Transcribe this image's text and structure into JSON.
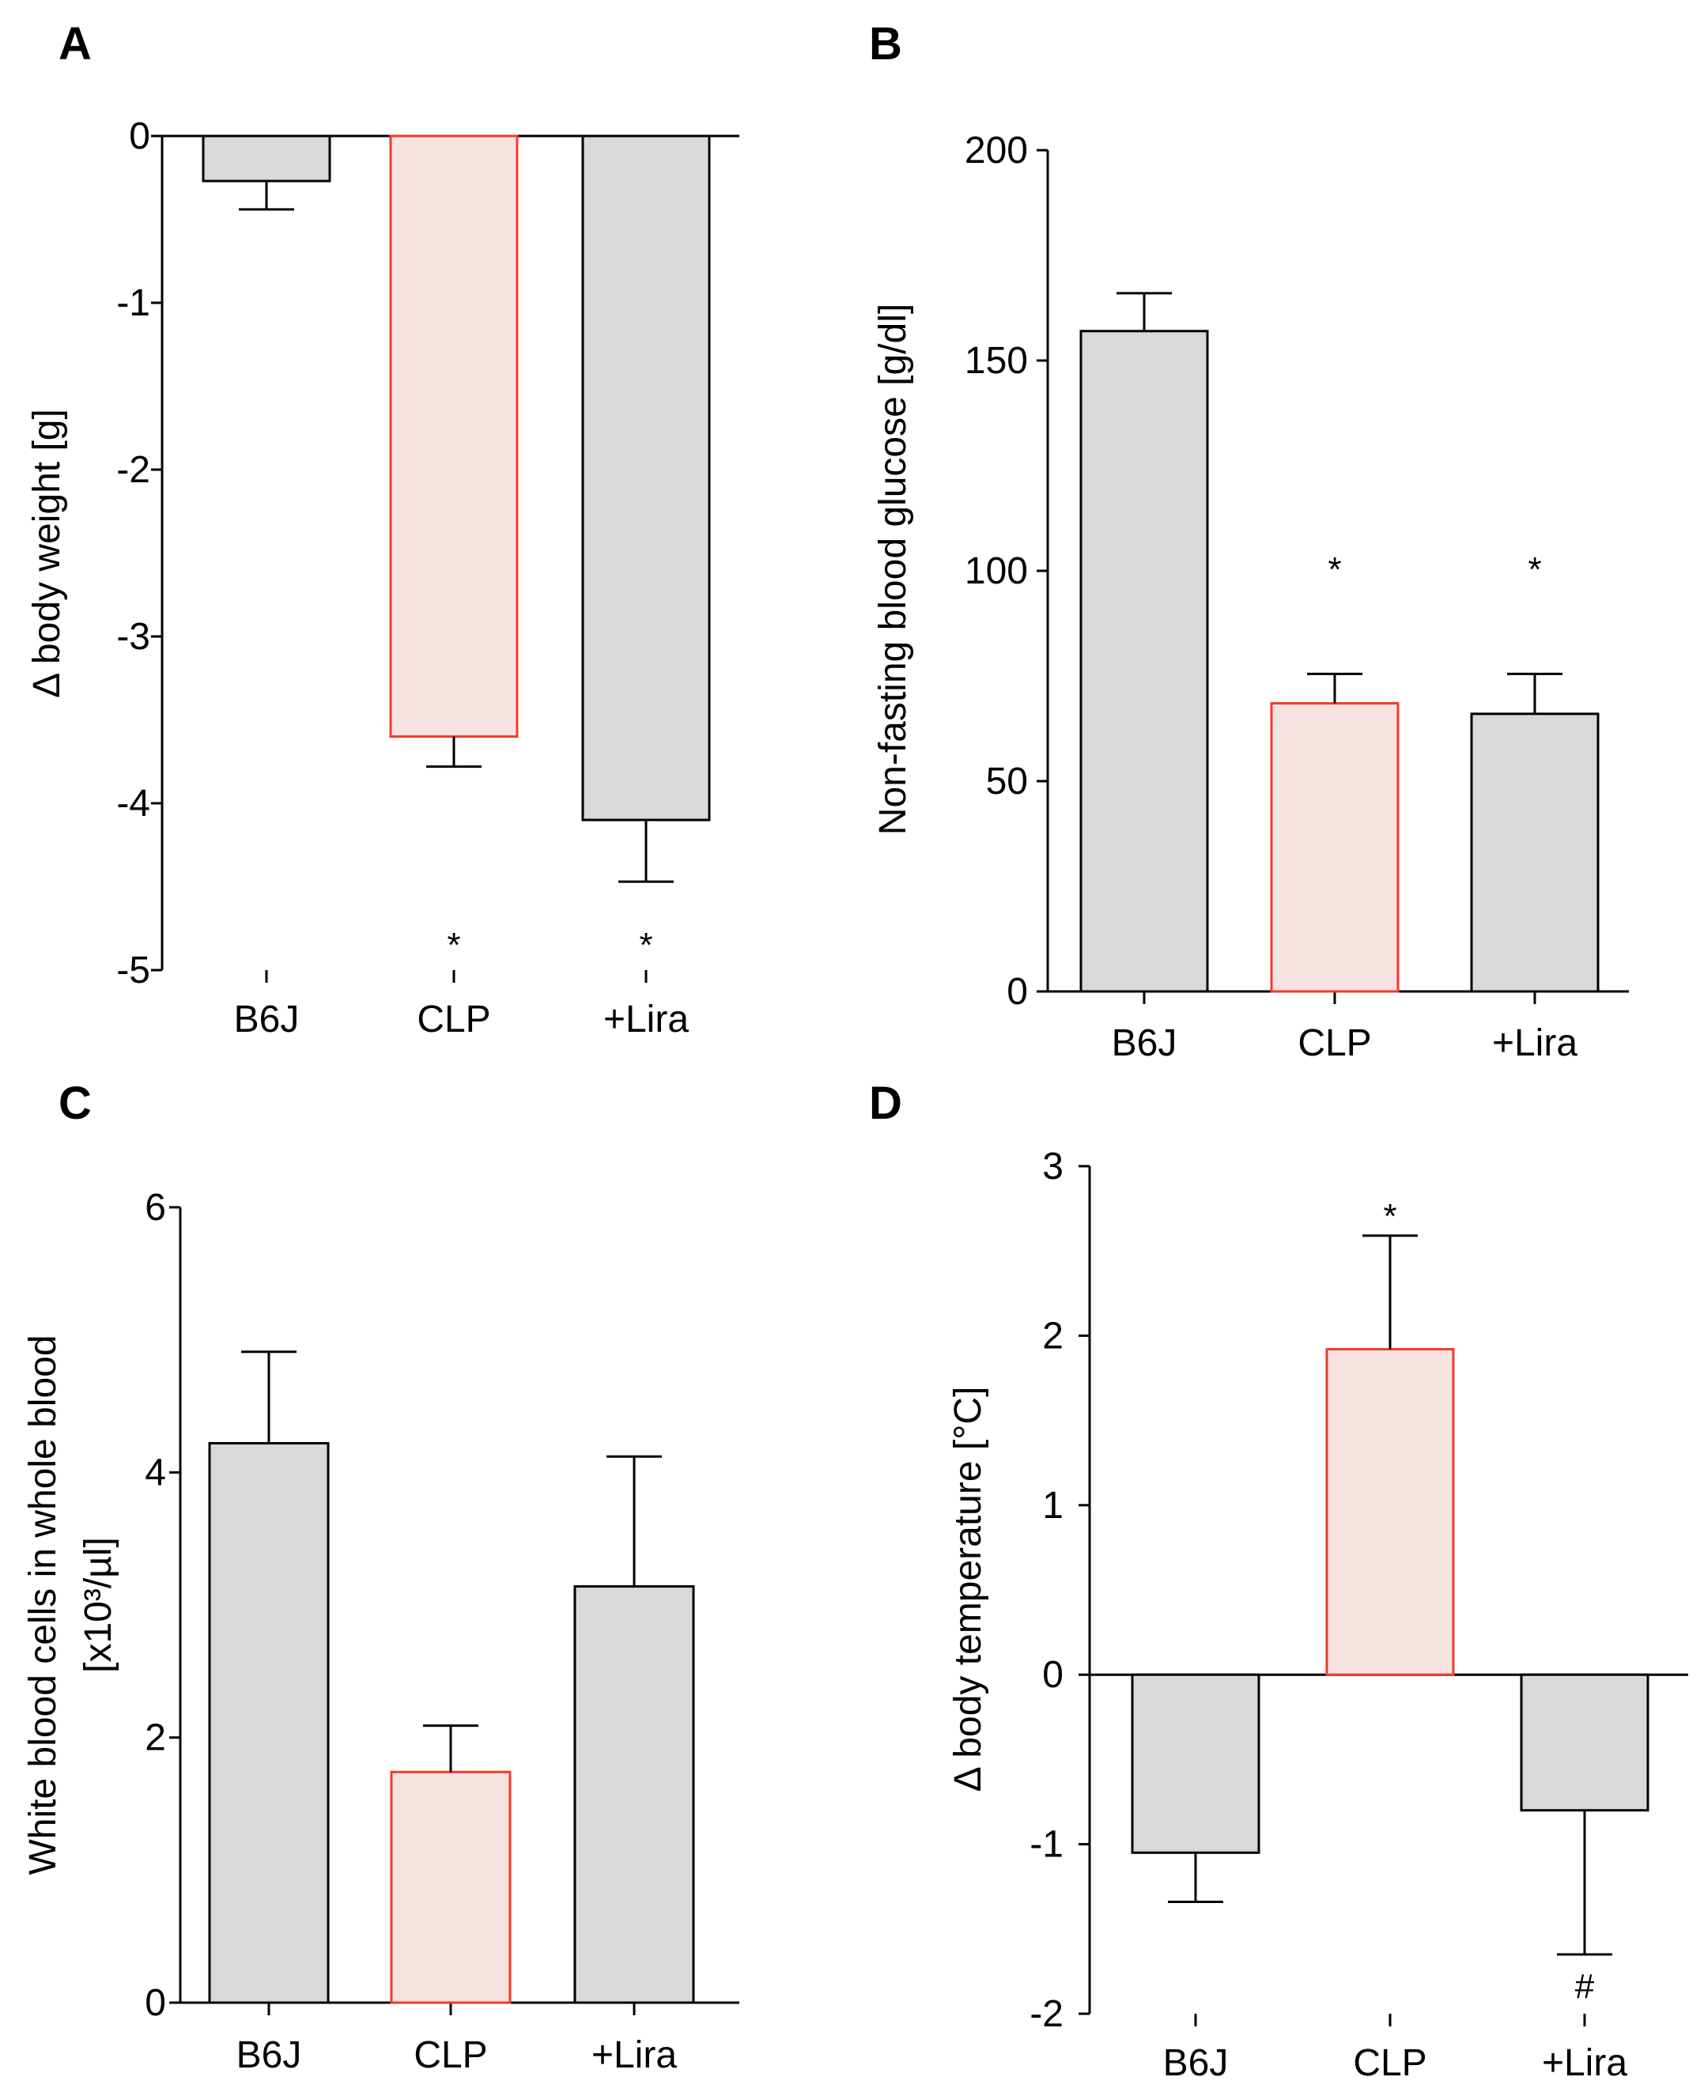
{
  "chart_data": [
    {
      "panel": "A",
      "type": "bar",
      "categories": [
        "B6J",
        "CLP",
        "+Lira"
      ],
      "values": [
        -0.27,
        -3.6,
        -4.1
      ],
      "errors": [
        0.17,
        0.18,
        0.37
      ],
      "error_direction": "down",
      "annotations": [
        "",
        "*",
        "*"
      ],
      "ylabel": "Δ body weight [g]",
      "ylim": [
        -5,
        0
      ],
      "yticks": [
        0,
        -1,
        -2,
        -3,
        -4,
        -5
      ],
      "ytick_labels": [
        "0",
        "-1",
        "-2",
        "-3",
        "-4",
        "-5"
      ],
      "colors": {
        "fill": [
          "#d9d9d9",
          "#f5e2e1",
          "#d9d9d9"
        ],
        "stroke": [
          "#000000",
          "#f03c28",
          "#000000"
        ]
      }
    },
    {
      "panel": "B",
      "type": "bar",
      "categories": [
        "B6J",
        "CLP",
        "+Lira"
      ],
      "values": [
        157,
        68.5,
        66
      ],
      "errors": [
        9,
        7,
        9.5
      ],
      "error_direction": "up",
      "annotations": [
        "",
        "*",
        "*"
      ],
      "ylabel": "Non-fasting blood glucose [g/dl]",
      "ylim": [
        0,
        200
      ],
      "yticks": [
        0,
        50,
        100,
        150,
        200
      ],
      "ytick_labels": [
        "0",
        "50",
        "100",
        "150",
        "200"
      ],
      "colors": {
        "fill": [
          "#d9d9d9",
          "#f5e2e1",
          "#d9d9d9"
        ],
        "stroke": [
          "#000000",
          "#f03c28",
          "#000000"
        ]
      }
    },
    {
      "panel": "C",
      "type": "bar",
      "categories": [
        "B6J",
        "CLP",
        "+Lira"
      ],
      "values": [
        4.22,
        1.74,
        3.14
      ],
      "errors": [
        0.69,
        0.35,
        0.98
      ],
      "error_direction": "up",
      "annotations": [
        "",
        "",
        ""
      ],
      "ylabel_lines": [
        "White blood cells in whole blood",
        "[x10³/µl]"
      ],
      "ylim": [
        0,
        6
      ],
      "yticks": [
        0,
        2,
        4,
        6
      ],
      "ytick_labels": [
        "0",
        "2",
        "4",
        "6"
      ],
      "colors": {
        "fill": [
          "#d9d9d9",
          "#f5e2e1",
          "#d9d9d9"
        ],
        "stroke": [
          "#000000",
          "#f03c28",
          "#000000"
        ]
      }
    },
    {
      "panel": "D",
      "type": "bar",
      "categories": [
        "B6J",
        "CLP",
        "+Lira"
      ],
      "values": [
        -1.05,
        1.92,
        -0.8
      ],
      "errors": [
        0.29,
        0.67,
        0.85
      ],
      "error_direction": "away",
      "annotations": [
        "",
        "*",
        "#"
      ],
      "ylabel": "Δ body temperature [°C]",
      "ylim": [
        -2,
        3
      ],
      "yticks": [
        -2,
        -1,
        0,
        1,
        2,
        3
      ],
      "ytick_labels": [
        "-2",
        "-1",
        "0",
        "1",
        "2",
        "3"
      ],
      "colors": {
        "fill": [
          "#d9d9d9",
          "#f5e2e1",
          "#d9d9d9"
        ],
        "stroke": [
          "#000000",
          "#f03c28",
          "#000000"
        ]
      }
    }
  ]
}
